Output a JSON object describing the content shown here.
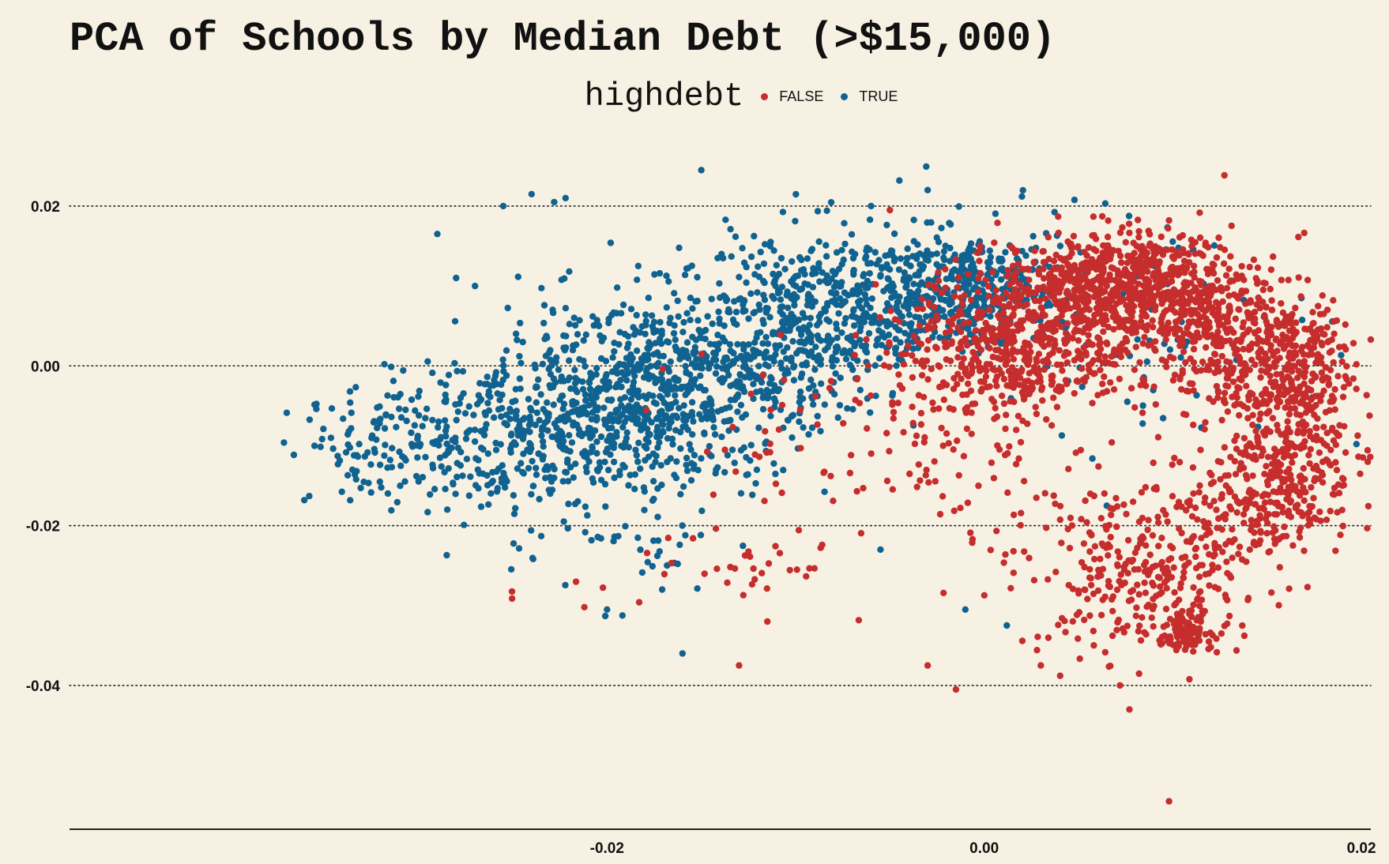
{
  "chart_data": {
    "type": "scatter",
    "title": "PCA of Schools by Median Debt (>$15,000)",
    "xlabel": "",
    "ylabel": "",
    "xlim": [
      -0.0485,
      0.0205
    ],
    "ylim": [
      -0.058,
      0.028
    ],
    "x_ticks": [
      -0.02,
      0.0,
      0.02
    ],
    "x_tick_labels": [
      "-0.02",
      "0.00",
      "0.02"
    ],
    "y_ticks": [
      0.02,
      0.0,
      -0.02,
      -0.04
    ],
    "y_tick_labels": [
      "0.02",
      "0.00",
      "-0.02",
      "-0.04"
    ],
    "grid": "horizontal dotted",
    "legend": {
      "title": "highdebt",
      "placement": "top-center",
      "entries": [
        {
          "label": "FALSE",
          "color": "#c62d2d"
        },
        {
          "label": "TRUE",
          "color": "#106390"
        }
      ]
    },
    "series": [
      {
        "name": "TRUE",
        "color": "#106390",
        "clusters": [
          {
            "cx": -0.033,
            "cy": -0.011,
            "sx": 0.0022,
            "sy": 0.0035,
            "n": 60
          },
          {
            "cx": -0.029,
            "cy": -0.009,
            "sx": 0.0025,
            "sy": 0.0045,
            "n": 120
          },
          {
            "cx": -0.025,
            "cy": -0.008,
            "sx": 0.0025,
            "sy": 0.005,
            "n": 200
          },
          {
            "cx": -0.021,
            "cy": -0.006,
            "sx": 0.0025,
            "sy": 0.006,
            "n": 320
          },
          {
            "cx": -0.017,
            "cy": -0.003,
            "sx": 0.0025,
            "sy": 0.0065,
            "n": 340
          },
          {
            "cx": -0.013,
            "cy": 0.0,
            "sx": 0.0025,
            "sy": 0.0065,
            "n": 300
          },
          {
            "cx": -0.009,
            "cy": 0.005,
            "sx": 0.0022,
            "sy": 0.006,
            "n": 280
          },
          {
            "cx": -0.005,
            "cy": 0.008,
            "sx": 0.0022,
            "sy": 0.004,
            "n": 240
          },
          {
            "cx": -0.0015,
            "cy": 0.01,
            "sx": 0.002,
            "sy": 0.0035,
            "n": 200
          },
          {
            "cx": 0.0015,
            "cy": 0.011,
            "sx": 0.0018,
            "sy": 0.003,
            "n": 90
          },
          {
            "cx": 0.004,
            "cy": 0.009,
            "sx": 0.003,
            "sy": 0.005,
            "n": 60
          },
          {
            "cx": 0.01,
            "cy": 0.001,
            "sx": 0.005,
            "sy": 0.006,
            "n": 40
          },
          {
            "cx": -0.018,
            "cy": -0.024,
            "sx": 0.003,
            "sy": 0.003,
            "n": 25
          }
        ],
        "points": [
          [
            -0.0335,
            -0.013
          ],
          [
            -0.029,
            0.0165
          ],
          [
            -0.0255,
            0.02
          ],
          [
            -0.024,
            0.0215
          ],
          [
            -0.0228,
            0.0205
          ],
          [
            -0.0222,
            0.021
          ],
          [
            -0.015,
            0.0245
          ],
          [
            -0.006,
            0.02
          ],
          [
            -0.0045,
            0.0232
          ],
          [
            -0.003,
            0.022
          ],
          [
            0.002,
            0.0212
          ],
          [
            -0.028,
            0.011
          ],
          [
            -0.027,
            0.01
          ],
          [
            -0.016,
            -0.036
          ],
          [
            -0.02,
            -0.0305
          ],
          [
            -0.0055,
            -0.023
          ],
          [
            -0.001,
            -0.0305
          ],
          [
            0.0012,
            -0.0325
          ],
          [
            0.0065,
            -0.0175
          ],
          [
            -0.0285,
            -0.0237
          ]
        ]
      },
      {
        "name": "FALSE",
        "color": "#c62d2d",
        "clusters": [
          {
            "cx": 0.007,
            "cy": 0.011,
            "sx": 0.003,
            "sy": 0.003,
            "n": 500
          },
          {
            "cx": 0.002,
            "cy": 0.003,
            "sx": 0.003,
            "sy": 0.0045,
            "n": 550
          },
          {
            "cx": 0.01,
            "cy": 0.007,
            "sx": 0.0028,
            "sy": 0.004,
            "n": 280
          },
          {
            "cx": 0.013,
            "cy": 0.003,
            "sx": 0.0025,
            "sy": 0.005,
            "n": 220
          },
          {
            "cx": 0.016,
            "cy": 0.0,
            "sx": 0.0018,
            "sy": 0.0045,
            "n": 260
          },
          {
            "cx": 0.016,
            "cy": -0.011,
            "sx": 0.0018,
            "sy": 0.0055,
            "n": 300
          },
          {
            "cx": 0.014,
            "cy": -0.019,
            "sx": 0.002,
            "sy": 0.003,
            "n": 120
          },
          {
            "cx": 0.01,
            "cy": -0.027,
            "sx": 0.0025,
            "sy": 0.0045,
            "n": 180
          },
          {
            "cx": 0.0105,
            "cy": -0.033,
            "sx": 0.0008,
            "sy": 0.0012,
            "n": 100
          },
          {
            "cx": 0.007,
            "cy": -0.027,
            "sx": 0.002,
            "sy": 0.005,
            "n": 80
          },
          {
            "cx": 0.003,
            "cy": -0.02,
            "sx": 0.004,
            "sy": 0.006,
            "n": 70
          },
          {
            "cx": -0.002,
            "cy": -0.006,
            "sx": 0.003,
            "sy": 0.005,
            "n": 90
          },
          {
            "cx": -0.008,
            "cy": -0.01,
            "sx": 0.004,
            "sy": 0.006,
            "n": 50
          },
          {
            "cx": -0.014,
            "cy": -0.025,
            "sx": 0.004,
            "sy": 0.0035,
            "n": 35
          }
        ],
        "points": [
          [
            0.0098,
            -0.0545
          ],
          [
            -0.0015,
            -0.0405
          ],
          [
            0.0077,
            -0.043
          ],
          [
            0.0072,
            -0.04
          ],
          [
            -0.0212,
            -0.0302
          ],
          [
            -0.013,
            -0.0375
          ],
          [
            -0.003,
            -0.0375
          ],
          [
            0.003,
            -0.0375
          ],
          [
            0.0185,
            0.0082
          ],
          [
            0.018,
            0.0065
          ],
          [
            0.0182,
            0.007
          ],
          [
            0.0098,
            0.0182
          ],
          [
            -0.005,
            0.0195
          ],
          [
            -0.0115,
            -0.032
          ]
        ]
      }
    ]
  }
}
